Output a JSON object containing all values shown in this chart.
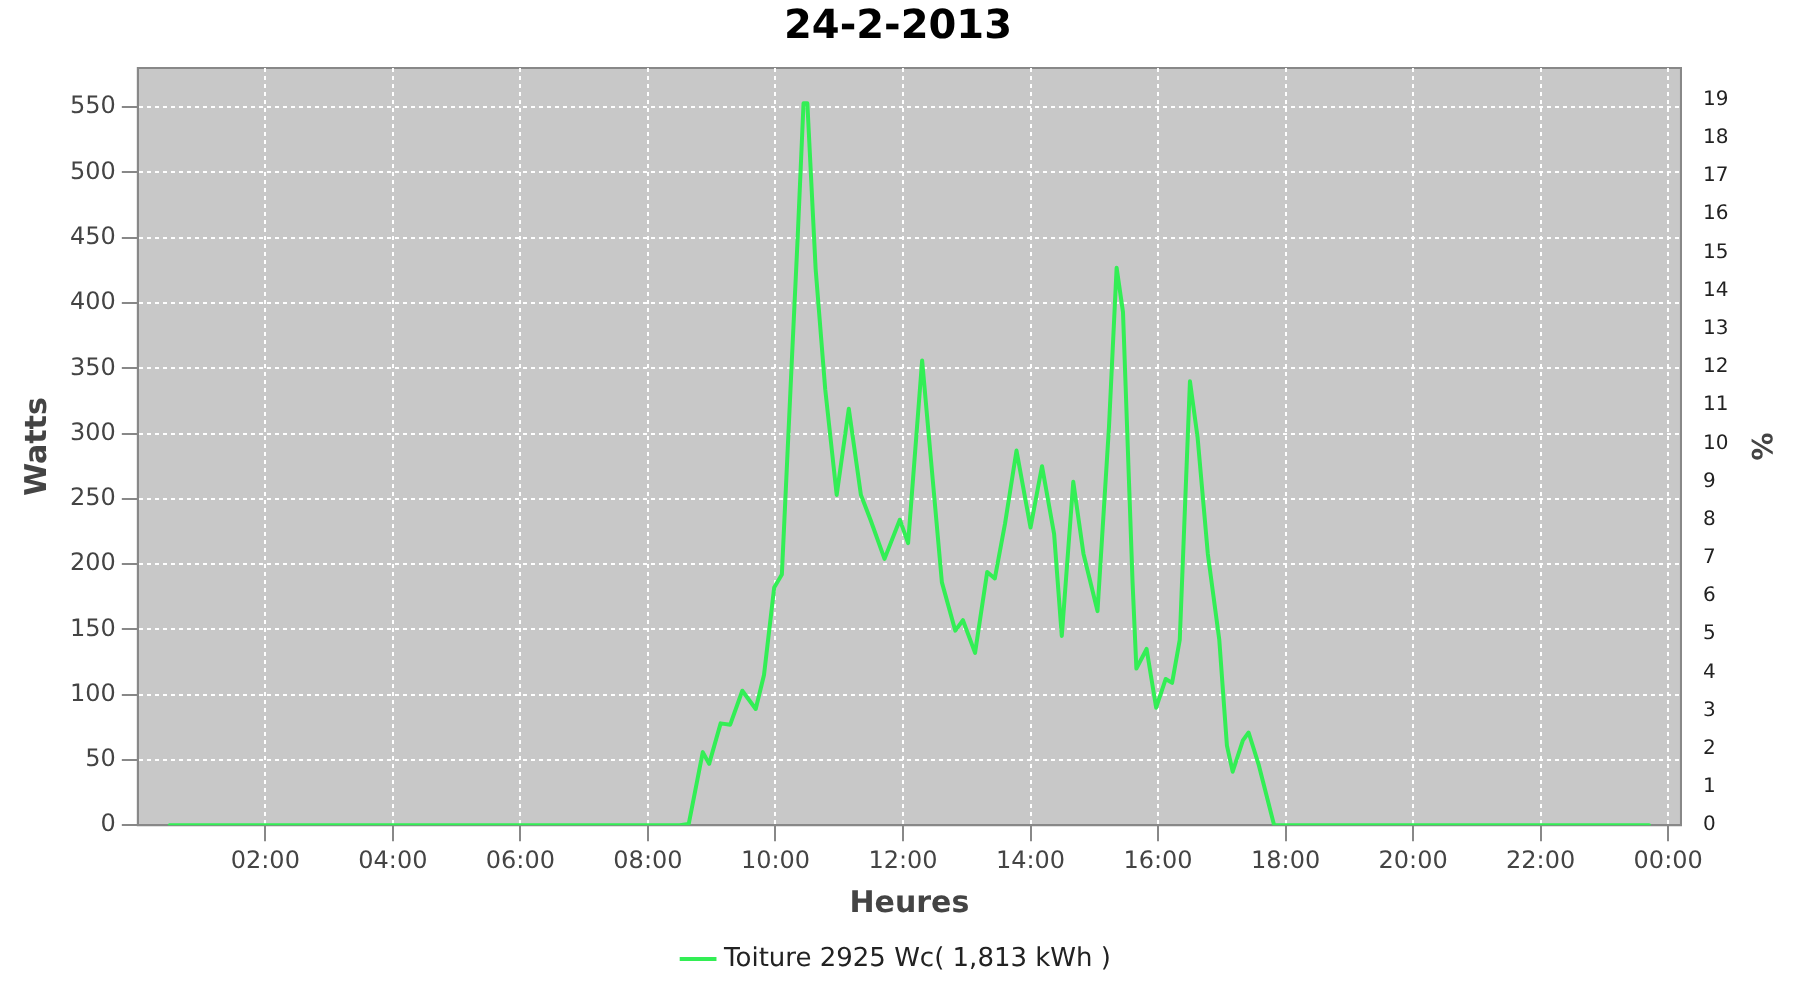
{
  "chart_data": {
    "type": "line",
    "title": "24-2-2013",
    "xlabel": "Heures",
    "ylabel": "Watts",
    "y2label": "%",
    "xlim": [
      0,
      24.2
    ],
    "xticks": [
      {
        "value": 2,
        "label": "02:00"
      },
      {
        "value": 4,
        "label": "04:00"
      },
      {
        "value": 6,
        "label": "06:00"
      },
      {
        "value": 8,
        "label": "08:00"
      },
      {
        "value": 10,
        "label": "10:00"
      },
      {
        "value": 12,
        "label": "12:00"
      },
      {
        "value": 14,
        "label": "14:00"
      },
      {
        "value": 16,
        "label": "16:00"
      },
      {
        "value": 18,
        "label": "18:00"
      },
      {
        "value": 20,
        "label": "20:00"
      },
      {
        "value": 22,
        "label": "22:00"
      },
      {
        "value": 24,
        "label": "00:00"
      }
    ],
    "ylim": [
      0,
      580
    ],
    "yticks": [
      0,
      50,
      100,
      150,
      200,
      250,
      300,
      350,
      400,
      450,
      500,
      550
    ],
    "y2lim": [
      0,
      19.83
    ],
    "y2ticks": [
      0,
      1,
      2,
      3,
      4,
      5,
      6,
      7,
      8,
      9,
      10,
      11,
      12,
      13,
      14,
      15,
      16,
      17,
      18,
      19
    ],
    "grid": true,
    "legend": "bottom",
    "marker": "none",
    "line_style": "solid",
    "series": [
      {
        "name": "Toiture 2925 Wc( 1,813 kWh )",
        "color": "#33ee55",
        "x": [
          0.5,
          2,
          4,
          6,
          8,
          8.5,
          8.64,
          8.86,
          8.96,
          9.14,
          9.29,
          9.48,
          9.69,
          9.82,
          9.98,
          10.1,
          10.25,
          10.35,
          10.44,
          10.5,
          10.63,
          10.78,
          10.96,
          11.15,
          11.34,
          11.49,
          11.71,
          11.95,
          12.08,
          12.3,
          12.42,
          12.61,
          12.82,
          12.94,
          13.13,
          13.32,
          13.44,
          13.6,
          13.78,
          14.0,
          14.18,
          14.37,
          14.49,
          14.67,
          14.83,
          15.05,
          15.23,
          15.35,
          15.45,
          15.6,
          15.66,
          15.82,
          15.97,
          16.12,
          16.22,
          16.34,
          16.5,
          16.62,
          16.78,
          16.96,
          17.08,
          17.17,
          17.33,
          17.42,
          17.58,
          17.82,
          18,
          20,
          22,
          23.7
        ],
        "values": [
          0,
          0,
          0,
          0,
          0,
          0,
          1,
          56,
          47,
          78,
          77,
          103,
          89,
          115,
          182,
          192,
          349,
          452,
          553,
          553,
          426,
          334,
          253,
          319,
          253,
          234,
          204,
          234,
          216,
          356,
          290,
          186,
          149,
          157,
          132,
          194,
          189,
          231,
          287,
          228,
          275,
          223,
          145,
          263,
          208,
          164,
          305,
          427,
          393,
          186,
          120,
          135,
          90,
          112,
          109,
          142,
          340,
          297,
          208,
          142,
          61,
          41,
          65,
          71,
          46,
          0,
          0,
          0,
          0,
          0
        ]
      }
    ]
  }
}
